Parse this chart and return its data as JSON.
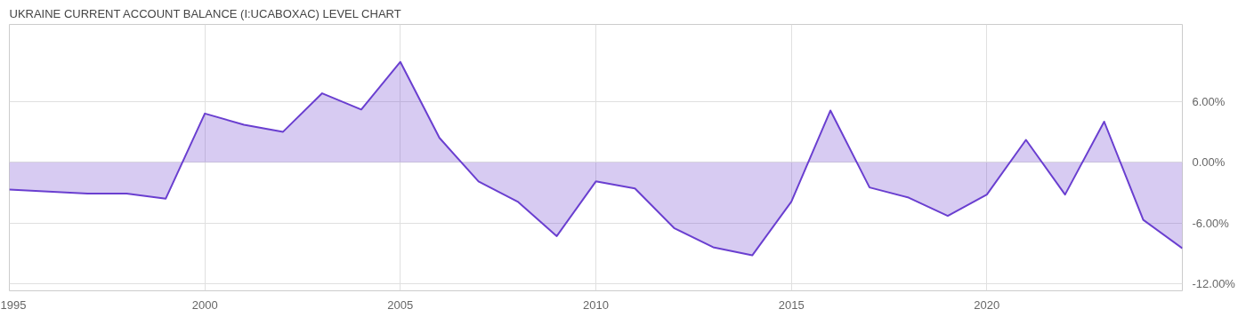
{
  "chart_data": {
    "type": "area",
    "title": "UKRAINE CURRENT ACCOUNT BALANCE (I:UCABOXAC) LEVEL CHART",
    "x": [
      1995,
      1996,
      1997,
      1998,
      1999,
      2000,
      2001,
      2002,
      2003,
      2004,
      2005,
      2006,
      2007,
      2008,
      2009,
      2010,
      2011,
      2012,
      2013,
      2014,
      2015,
      2016,
      2017,
      2018,
      2019,
      2020,
      2021,
      2022,
      2023,
      2024,
      2025
    ],
    "series": [
      {
        "color": "#6a3fd0",
        "values": [
          -2.7,
          -2.9,
          -3.1,
          -3.1,
          -3.6,
          4.8,
          3.7,
          3.0,
          6.8,
          5.2,
          9.9,
          2.4,
          -1.9,
          -3.9,
          -7.3,
          -1.9,
          -2.6,
          -6.5,
          -8.4,
          -9.2,
          -3.9,
          5.1,
          -2.5,
          -3.5,
          -5.3,
          -3.2,
          2.2,
          -3.2,
          4.0,
          -5.7,
          -8.5
        ]
      }
    ],
    "xlim": [
      1995,
      2025
    ],
    "xticks": [
      1995,
      2000,
      2005,
      2010,
      2015,
      2020
    ],
    "ylim": [
      -12.7,
      13.6
    ],
    "yticks": [
      {
        "value": -12,
        "label": "-12.00%"
      },
      {
        "value": -6,
        "label": "-6.00%"
      },
      {
        "value": 0,
        "label": "0.00%"
      },
      {
        "value": 6,
        "label": "6.00%"
      }
    ],
    "grid": true
  }
}
